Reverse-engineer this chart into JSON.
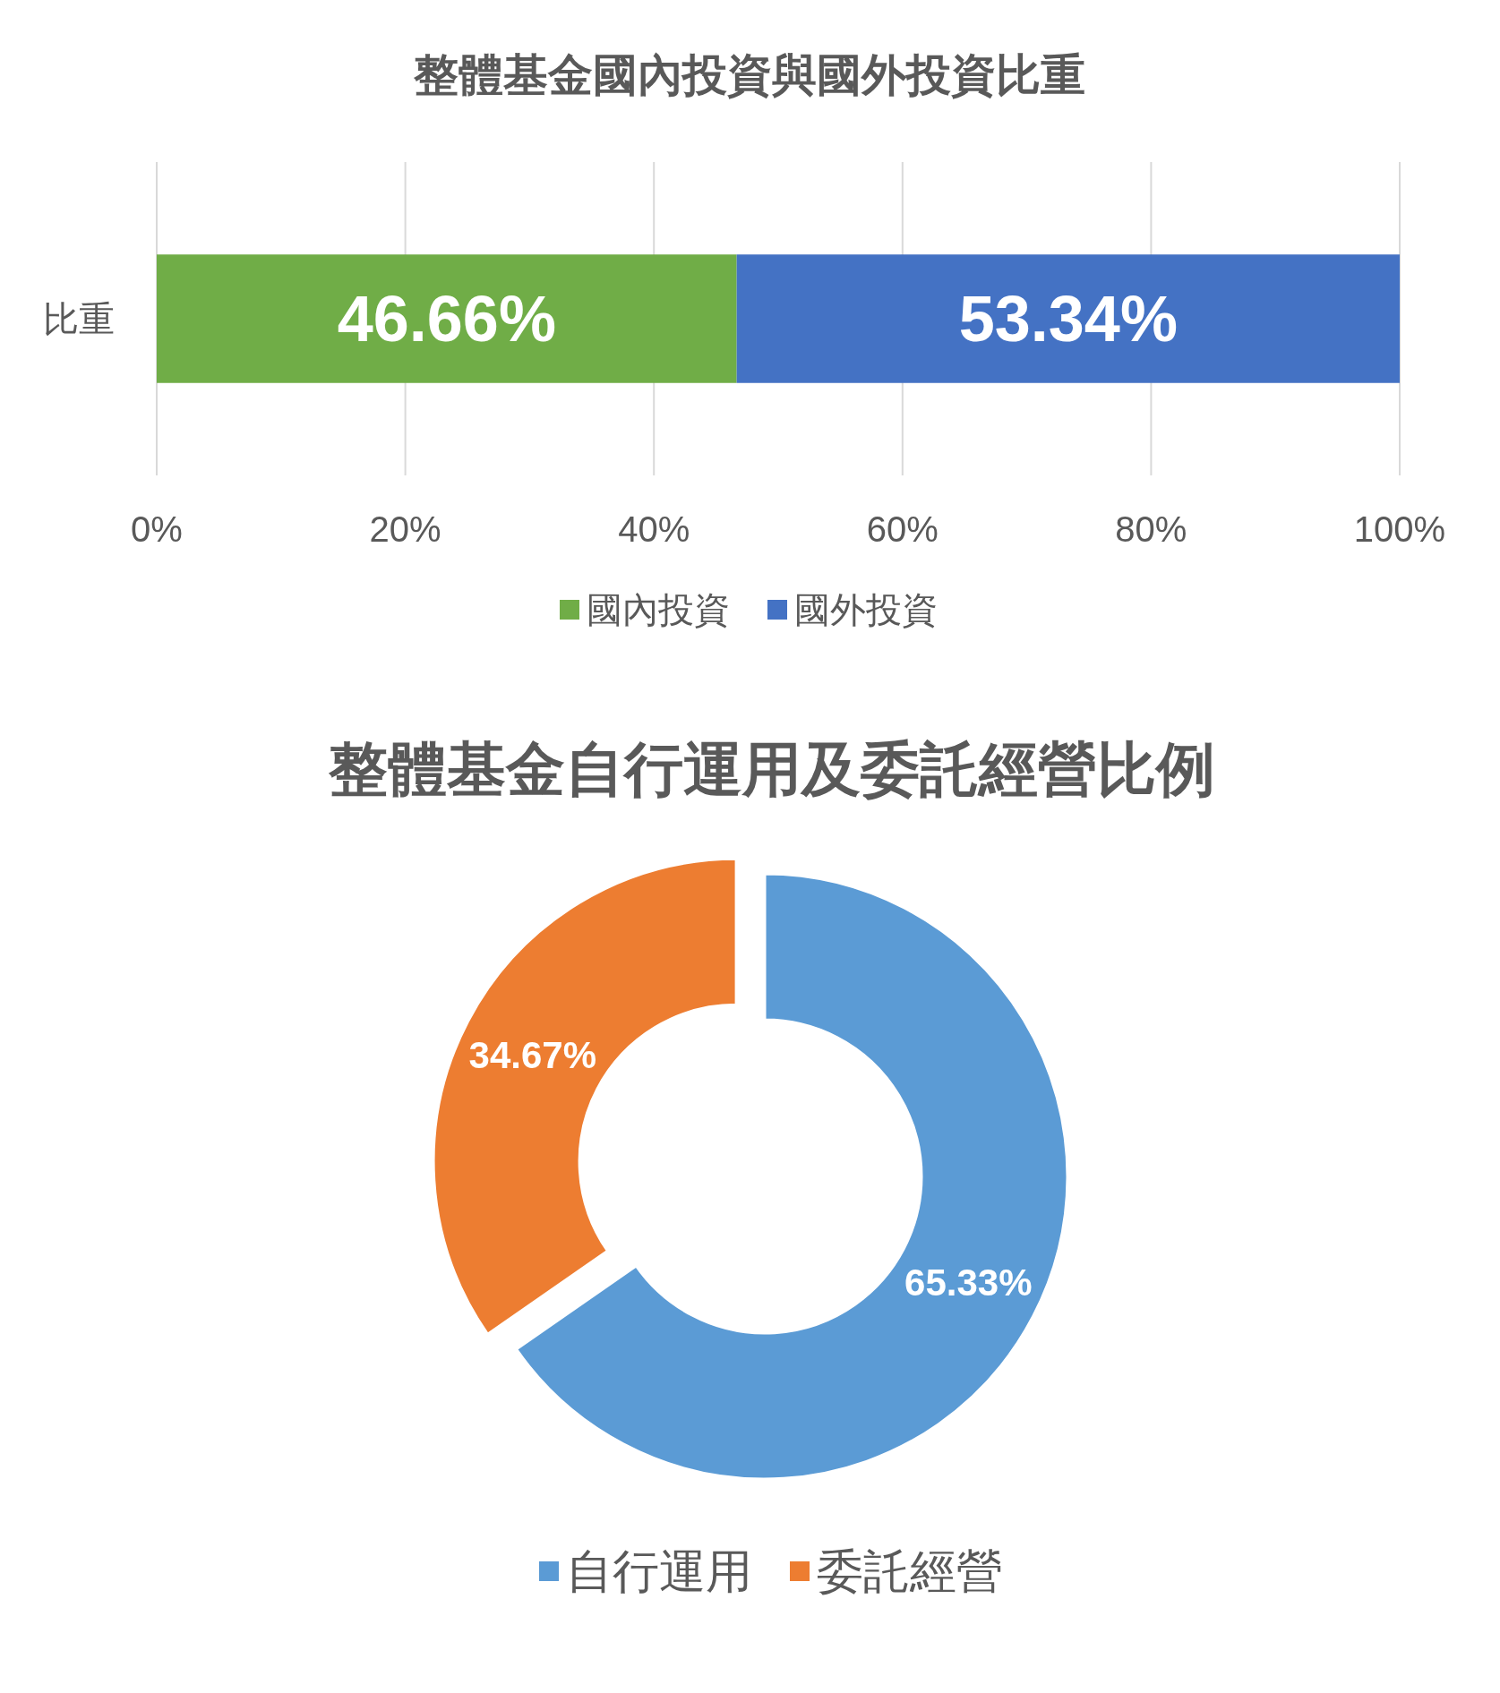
{
  "chart_data": [
    {
      "type": "bar",
      "orientation": "horizontal",
      "stacked": true,
      "title": "整體基金國內投資與國外投資比重",
      "categories": [
        "比重"
      ],
      "series": [
        {
          "name": "國內投資",
          "color": "#70ad47",
          "values": [
            46.66
          ],
          "value_labels": [
            "46.66%"
          ]
        },
        {
          "name": "國外投資",
          "color": "#4472c4",
          "values": [
            53.34
          ],
          "value_labels": [
            "53.34%"
          ]
        }
      ],
      "xlim": [
        0,
        100
      ],
      "xticks": [
        {
          "value": 0,
          "label": "0%"
        },
        {
          "value": 20,
          "label": "20%"
        },
        {
          "value": 40,
          "label": "40%"
        },
        {
          "value": 60,
          "label": "60%"
        },
        {
          "value": 80,
          "label": "80%"
        },
        {
          "value": 100,
          "label": "100%"
        }
      ],
      "grid": "x",
      "legend": "bottom"
    },
    {
      "type": "donut",
      "title": "整體基金自行運用及委託經營比例",
      "categories": [
        "自行運用",
        "委託經營"
      ],
      "values": [
        65.33,
        34.67
      ],
      "colors": [
        "#5b9bd5",
        "#ed7d31"
      ],
      "value_labels": [
        "65.33%",
        "34.67%"
      ],
      "legend": "bottom"
    }
  ]
}
